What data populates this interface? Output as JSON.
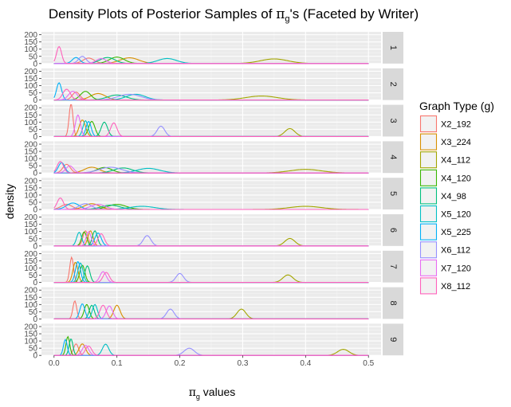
{
  "chart_data": {
    "type": "line",
    "title_main": "Density Plots of Posterior Samples of ",
    "title_pi": "π",
    "title_sub": "g",
    "title_tail": "'s (Faceted by Writer)",
    "xlabel_pi": "π",
    "xlabel_sub": "g",
    "xlabel_tail": " values",
    "ylabel": "density",
    "xlim": [
      -0.02,
      0.52
    ],
    "x_ticks": [
      0.0,
      0.1,
      0.2,
      0.3,
      0.4,
      0.5
    ],
    "x_tick_labels": [
      "0.0",
      "0.1",
      "0.2",
      "0.3",
      "0.4",
      "0.5"
    ],
    "ylim": [
      0,
      220
    ],
    "y_ticks": [
      0,
      50,
      100,
      150,
      200
    ],
    "y_tick_labels": [
      "0",
      "50",
      "100",
      "150",
      "200"
    ],
    "y_minor_ticks": [
      25,
      75,
      125,
      175
    ],
    "y_minor_labels": [
      "-",
      "-",
      "-",
      "-"
    ],
    "grid": true,
    "legend": {
      "title": "Graph Type (g)",
      "position": "right"
    },
    "series": [
      {
        "name": "X2_192",
        "color": "#F8766D"
      },
      {
        "name": "X3_224",
        "color": "#D89000"
      },
      {
        "name": "X4_112",
        "color": "#A3A500"
      },
      {
        "name": "X4_120",
        "color": "#39B600"
      },
      {
        "name": "X4_98",
        "color": "#00BF7D"
      },
      {
        "name": "X5_120",
        "color": "#00BFC4"
      },
      {
        "name": "X5_225",
        "color": "#00B0F6"
      },
      {
        "name": "X6_112",
        "color": "#9590FF"
      },
      {
        "name": "X7_120",
        "color": "#E76BF3"
      },
      {
        "name": "X8_112",
        "color": "#FF62BC"
      }
    ],
    "facets": [
      {
        "label": "1",
        "peaks": [
          [
            0.055,
            38,
            0.009
          ],
          [
            0.12,
            40,
            0.015
          ],
          [
            0.35,
            32,
            0.022
          ],
          [
            0.1,
            45,
            0.012
          ],
          [
            0.085,
            42,
            0.012
          ],
          [
            0.18,
            35,
            0.015
          ],
          [
            0.035,
            42,
            0.006
          ],
          [
            0.045,
            50,
            0.006
          ],
          [
            0.075,
            35,
            0.008
          ],
          [
            0.008,
            118,
            0.004
          ]
        ]
      },
      {
        "name_hint": "",
        "label": "2",
        "peaks": [
          [
            0.035,
            55,
            0.006
          ],
          [
            0.07,
            45,
            0.012
          ],
          [
            0.33,
            28,
            0.025
          ],
          [
            0.05,
            60,
            0.008
          ],
          [
            0.1,
            35,
            0.015
          ],
          [
            0.13,
            40,
            0.015
          ],
          [
            0.008,
            120,
            0.004
          ],
          [
            0.12,
            40,
            0.018
          ],
          [
            0.03,
            60,
            0.007
          ],
          [
            0.02,
            75,
            0.006
          ]
        ]
      },
      {
        "label": "3",
        "peaks": [
          [
            0.027,
            230,
            0.003
          ],
          [
            0.045,
            115,
            0.005
          ],
          [
            0.375,
            55,
            0.008
          ],
          [
            0.06,
            105,
            0.005
          ],
          [
            0.08,
            100,
            0.005
          ],
          [
            0.05,
            110,
            0.004
          ],
          [
            0.055,
            105,
            0.004
          ],
          [
            0.17,
            72,
            0.006
          ],
          [
            0.038,
            150,
            0.004
          ],
          [
            0.095,
            95,
            0.005
          ]
        ]
      },
      {
        "label": "4",
        "peaks": [
          [
            0.02,
            60,
            0.006
          ],
          [
            0.06,
            40,
            0.012
          ],
          [
            0.4,
            25,
            0.025
          ],
          [
            0.08,
            38,
            0.012
          ],
          [
            0.11,
            35,
            0.015
          ],
          [
            0.15,
            32,
            0.018
          ],
          [
            0.012,
            72,
            0.005
          ],
          [
            0.09,
            40,
            0.018
          ],
          [
            0.025,
            50,
            0.006
          ],
          [
            0.01,
            80,
            0.005
          ]
        ]
      },
      {
        "label": "5",
        "peaks": [
          [
            0.02,
            35,
            0.009
          ],
          [
            0.06,
            40,
            0.012
          ],
          [
            0.4,
            22,
            0.025
          ],
          [
            0.1,
            35,
            0.015
          ],
          [
            0.09,
            30,
            0.015
          ],
          [
            0.14,
            22,
            0.02
          ],
          [
            0.03,
            45,
            0.01
          ],
          [
            0.05,
            40,
            0.01
          ],
          [
            0.07,
            35,
            0.012
          ],
          [
            0.01,
            80,
            0.005
          ]
        ]
      },
      {
        "label": "6",
        "peaks": [
          [
            0.05,
            105,
            0.004
          ],
          [
            0.058,
            105,
            0.004
          ],
          [
            0.375,
            52,
            0.008
          ],
          [
            0.048,
            98,
            0.004
          ],
          [
            0.065,
            105,
            0.004
          ],
          [
            0.04,
            95,
            0.004
          ],
          [
            0.07,
            90,
            0.005
          ],
          [
            0.148,
            72,
            0.006
          ],
          [
            0.055,
            100,
            0.004
          ],
          [
            0.075,
            85,
            0.005
          ]
        ]
      },
      {
        "label": "7",
        "peaks": [
          [
            0.028,
            175,
            0.003
          ],
          [
            0.034,
            140,
            0.004
          ],
          [
            0.372,
            52,
            0.008
          ],
          [
            0.045,
            120,
            0.004
          ],
          [
            0.053,
            115,
            0.004
          ],
          [
            0.042,
            135,
            0.004
          ],
          [
            0.038,
            145,
            0.004
          ],
          [
            0.2,
            62,
            0.006
          ],
          [
            0.078,
            75,
            0.005
          ],
          [
            0.083,
            70,
            0.005
          ]
        ]
      },
      {
        "label": "8",
        "peaks": [
          [
            0.033,
            125,
            0.003
          ],
          [
            0.1,
            95,
            0.005
          ],
          [
            0.298,
            68,
            0.007
          ],
          [
            0.052,
            100,
            0.004
          ],
          [
            0.06,
            95,
            0.004
          ],
          [
            0.065,
            100,
            0.004
          ],
          [
            0.045,
            105,
            0.004
          ],
          [
            0.185,
            68,
            0.006
          ],
          [
            0.088,
            90,
            0.005
          ],
          [
            0.078,
            95,
            0.005
          ]
        ]
      },
      {
        "label": "9",
        "peaks": [
          [
            0.035,
            80,
            0.004
          ],
          [
            0.045,
            80,
            0.005
          ],
          [
            0.46,
            42,
            0.009
          ],
          [
            0.022,
            130,
            0.003
          ],
          [
            0.027,
            115,
            0.003
          ],
          [
            0.082,
            78,
            0.005
          ],
          [
            0.018,
            110,
            0.003
          ],
          [
            0.215,
            50,
            0.008
          ],
          [
            0.05,
            70,
            0.005
          ],
          [
            0.055,
            65,
            0.005
          ]
        ]
      }
    ]
  }
}
